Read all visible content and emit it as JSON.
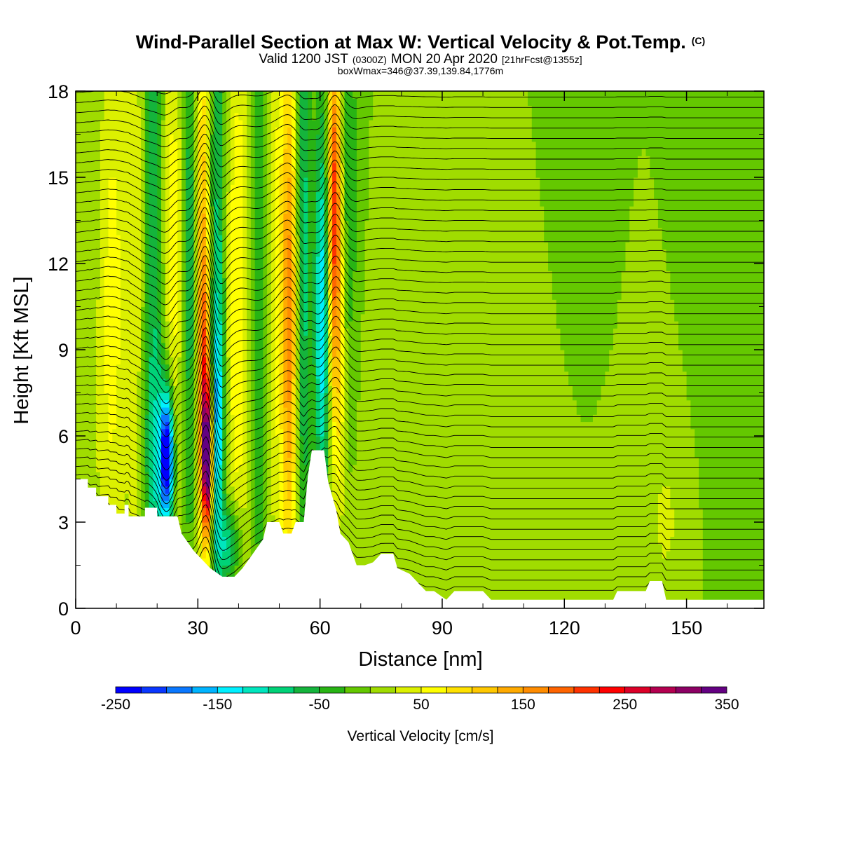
{
  "chart_data": {
    "type": "heatmap",
    "title": "Wind-Parallel Section at Max W: Vertical Velocity & Pot.Temp.",
    "title_mark": "(C)",
    "subtitle": {
      "prefix": "Valid 1200 JST",
      "utc": "(0300Z)",
      "date": "MON 20 Apr 2020",
      "forecast": "[21hrFcst@1355z]"
    },
    "info_line": "boxWmax=346@37.39,139.84,1776m",
    "xlabel": "Distance [nm]",
    "ylabel": "Height [Kft MSL]",
    "xlim": [
      0,
      169
    ],
    "ylim": [
      0,
      18
    ],
    "xticks": [
      0,
      30,
      60,
      90,
      120,
      150
    ],
    "yticks": [
      0,
      3,
      6,
      9,
      12,
      15,
      18
    ],
    "colorbar": {
      "title": "Vertical Velocity [cm/s]",
      "min": -250,
      "max": 350,
      "step": 25,
      "tick_labels": [
        "-250",
        "-150",
        "-50",
        "50",
        "150",
        "250",
        "350"
      ],
      "colors": [
        "#0000ff",
        "#0a37ff",
        "#0a78ff",
        "#00b4ff",
        "#00f0ff",
        "#00e6be",
        "#00d278",
        "#14b43c",
        "#28b414",
        "#64c800",
        "#a0dc00",
        "#dcf000",
        "#ffff00",
        "#ffe100",
        "#ffc800",
        "#ffaa00",
        "#ff8c00",
        "#ff6400",
        "#ff3200",
        "#ff0000",
        "#dc0028",
        "#b40050",
        "#8c0064",
        "#640082"
      ]
    },
    "terrain_kft": [
      [
        0,
        4.5
      ],
      [
        3,
        4.5
      ],
      [
        3,
        4.2
      ],
      [
        5,
        4.2
      ],
      [
        5,
        3.9
      ],
      [
        8,
        3.9
      ],
      [
        8,
        3.6
      ],
      [
        10,
        3.6
      ],
      [
        10,
        3.3
      ],
      [
        12,
        3.3
      ],
      [
        12,
        3.6
      ],
      [
        13,
        3.6
      ],
      [
        13,
        3.2
      ],
      [
        17,
        3.2
      ],
      [
        17,
        3.5
      ],
      [
        20,
        3.5
      ],
      [
        20,
        3.2
      ],
      [
        25,
        3.2
      ],
      [
        26,
        2.6
      ],
      [
        29,
        2.0
      ],
      [
        31,
        1.7
      ],
      [
        33,
        1.4
      ],
      [
        36,
        1.1
      ],
      [
        39,
        1.1
      ],
      [
        41,
        1.4
      ],
      [
        43,
        1.8
      ],
      [
        46,
        2.4
      ],
      [
        47,
        3.0
      ],
      [
        50,
        3.0
      ],
      [
        51,
        2.6
      ],
      [
        53,
        2.6
      ],
      [
        54,
        3.0
      ],
      [
        56,
        3.0
      ],
      [
        57,
        4.6
      ],
      [
        58,
        5.5
      ],
      [
        61,
        5.5
      ],
      [
        62,
        4.4
      ],
      [
        64,
        3.4
      ],
      [
        65,
        2.6
      ],
      [
        67,
        2.3
      ],
      [
        69,
        1.5
      ],
      [
        71,
        1.5
      ],
      [
        73,
        1.6
      ],
      [
        75,
        1.9
      ],
      [
        78,
        1.9
      ],
      [
        79,
        1.4
      ],
      [
        82,
        1.2
      ],
      [
        84,
        0.9
      ],
      [
        86,
        0.6
      ],
      [
        88,
        0.6
      ],
      [
        91,
        0.3
      ],
      [
        93,
        0.6
      ],
      [
        100,
        0.6
      ],
      [
        102,
        0.3
      ],
      [
        132,
        0.3
      ],
      [
        133,
        0.6
      ],
      [
        140,
        0.6
      ],
      [
        141,
        0.95
      ],
      [
        144,
        0.95
      ],
      [
        145,
        0.3
      ],
      [
        169,
        0.3
      ]
    ],
    "w_features": [
      {
        "x": 5,
        "z": 5.0,
        "sx": 3.0,
        "sz": 3.5,
        "w": 10
      },
      {
        "x": 9,
        "z": 11.0,
        "sx": 2.5,
        "sz": 7.0,
        "w": 60
      },
      {
        "x": 15,
        "z": 12.0,
        "sx": 1.8,
        "sz": 10.0,
        "w": 40
      },
      {
        "x": 19,
        "z": 13.0,
        "sx": 1.8,
        "sz": 9.0,
        "w": -70
      },
      {
        "x": 24,
        "z": 11.0,
        "sx": 2.0,
        "sz": 8.0,
        "w": 70
      },
      {
        "x": 28,
        "z": 12.0,
        "sx": 1.5,
        "sz": 7.0,
        "w": -80
      },
      {
        "x": 22.5,
        "z": 5.3,
        "sx": 1.1,
        "sz": 1.5,
        "w": -260
      },
      {
        "x": 21,
        "z": 5.0,
        "sx": 2.5,
        "sz": 3.0,
        "w": -80
      },
      {
        "x": 32.5,
        "z": 5.2,
        "sx": 0.9,
        "sz": 1.6,
        "w": 300
      },
      {
        "x": 31.8,
        "z": 7.0,
        "sx": 1.1,
        "sz": 3.5,
        "w": 160
      },
      {
        "x": 31,
        "z": 13.0,
        "sx": 1.2,
        "sz": 6.0,
        "w": 120
      },
      {
        "x": 34.5,
        "z": 6.0,
        "sx": 1.2,
        "sz": 3.0,
        "w": -120
      },
      {
        "x": 35,
        "z": 12.0,
        "sx": 1.3,
        "sz": 8.0,
        "w": -90
      },
      {
        "x": 40,
        "z": 11.0,
        "sx": 2.5,
        "sz": 8.0,
        "w": 70
      },
      {
        "x": 38,
        "z": 2.2,
        "sx": 2.0,
        "sz": 1.0,
        "w": -110
      },
      {
        "x": 45,
        "z": 11.0,
        "sx": 1.8,
        "sz": 8.0,
        "w": -70
      },
      {
        "x": 50,
        "z": 12.0,
        "sx": 2.5,
        "sz": 8.0,
        "w": 60
      },
      {
        "x": 52.5,
        "z": 10.0,
        "sx": 1.2,
        "sz": 6.0,
        "w": 130
      },
      {
        "x": 56,
        "z": 12.0,
        "sx": 1.2,
        "sz": 8.0,
        "w": -90
      },
      {
        "x": 60.5,
        "z": 10.0,
        "sx": 1.3,
        "sz": 5.0,
        "w": -150
      },
      {
        "x": 63.5,
        "z": 14.5,
        "sx": 1.1,
        "sz": 4.0,
        "w": 200
      },
      {
        "x": 64.5,
        "z": 9.0,
        "sx": 1.5,
        "sz": 4.0,
        "w": 80
      },
      {
        "x": 67,
        "z": 14.0,
        "sx": 1.5,
        "sz": 6.0,
        "w": -50
      },
      {
        "x": 100,
        "z": 4.0,
        "sx": 30.0,
        "sz": 4.0,
        "w": 15
      },
      {
        "x": 125,
        "z": 13.0,
        "sx": 4.0,
        "sz": 5.0,
        "w": -20
      },
      {
        "x": 145,
        "z": 3.0,
        "sx": 3.0,
        "sz": 2.0,
        "w": 25
      },
      {
        "x": 160,
        "z": 14.0,
        "sx": 6.0,
        "sz": 8.0,
        "w": -15
      }
    ]
  }
}
